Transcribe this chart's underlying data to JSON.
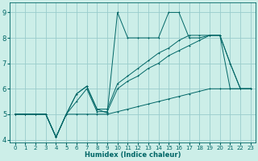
{
  "xlabel": "Humidex (Indice chaleur)",
  "xlim": [
    -0.5,
    23.5
  ],
  "ylim": [
    3.9,
    9.4
  ],
  "yticks": [
    4,
    5,
    6,
    7,
    8,
    9
  ],
  "xticks": [
    0,
    1,
    2,
    3,
    4,
    5,
    6,
    7,
    8,
    9,
    10,
    11,
    12,
    13,
    14,
    15,
    16,
    17,
    18,
    19,
    20,
    21,
    22,
    23
  ],
  "bg_color": "#cceee8",
  "line_color": "#006666",
  "grid_color": "#99cccc",
  "lines": [
    {
      "x": [
        0,
        1,
        2,
        3,
        4,
        5,
        6,
        7,
        8,
        9,
        10,
        11,
        12,
        13,
        14,
        15,
        16,
        17,
        18,
        19,
        20,
        21,
        22,
        23
      ],
      "y": [
        5,
        5,
        5,
        5,
        4.1,
        5,
        5,
        5,
        5,
        5,
        5.1,
        5.2,
        5.3,
        5.4,
        5.5,
        5.6,
        5.7,
        5.8,
        5.9,
        6.0,
        6.0,
        6.0,
        6.0,
        6.0
      ],
      "marker": "+"
    },
    {
      "x": [
        0,
        1,
        2,
        3,
        4,
        5,
        6,
        7,
        8,
        9,
        10,
        11,
        12,
        13,
        14,
        15,
        16,
        17,
        18,
        19,
        20,
        21,
        22,
        23
      ],
      "y": [
        5,
        5,
        5,
        5,
        4.1,
        5,
        5.5,
        6.0,
        5.1,
        5.1,
        6.0,
        6.3,
        6.5,
        6.8,
        7.0,
        7.3,
        7.5,
        7.7,
        7.9,
        8.1,
        8.1,
        6.0,
        6.0,
        6.0
      ],
      "marker": "+"
    },
    {
      "x": [
        0,
        1,
        2,
        3,
        4,
        5,
        6,
        7,
        8,
        9,
        10,
        11,
        12,
        13,
        14,
        15,
        16,
        17,
        18,
        19,
        20,
        21,
        22,
        23
      ],
      "y": [
        5,
        5,
        5,
        5,
        4.1,
        5,
        5.8,
        6.1,
        5.2,
        5.2,
        6.2,
        6.5,
        6.8,
        7.1,
        7.4,
        7.6,
        7.9,
        8.1,
        8.1,
        8.1,
        8.1,
        7.0,
        6.0,
        6.0
      ],
      "marker": "+"
    },
    {
      "x": [
        0,
        1,
        2,
        3,
        4,
        5,
        6,
        7,
        8,
        9,
        10,
        11,
        12,
        13,
        14,
        15,
        16,
        17,
        18,
        19,
        20,
        21,
        22,
        23
      ],
      "y": [
        5,
        5,
        5,
        5,
        4.1,
        5,
        5.8,
        6.1,
        5.2,
        5.05,
        9.0,
        8.0,
        8.0,
        8.0,
        8.0,
        9.0,
        9.0,
        8.0,
        8.0,
        8.1,
        8.1,
        7.0,
        6.0,
        6.0
      ],
      "marker": "+"
    }
  ]
}
